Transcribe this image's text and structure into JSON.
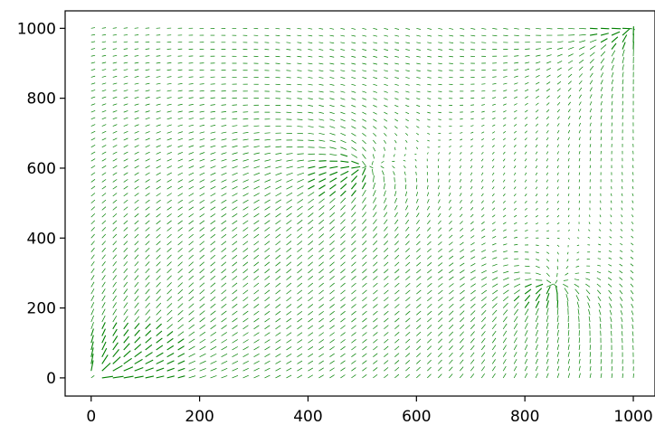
{
  "chart_data": {
    "type": "quiver",
    "title": "",
    "xlabel": "",
    "ylabel": "",
    "xlim": [
      -48,
      1040
    ],
    "ylim": [
      -52,
      1050
    ],
    "x_ticks": [
      0,
      200,
      400,
      600,
      800,
      1000
    ],
    "y_ticks": [
      0,
      200,
      400,
      600,
      800,
      1000
    ],
    "grid": false,
    "arrow_color": "#008000",
    "grid_points": {
      "x_start": 0,
      "x_end": 1000,
      "y_start": 0,
      "y_end": 1000,
      "step": 20
    },
    "field_features": [
      {
        "name": "source",
        "x": 0,
        "y": 0
      },
      {
        "name": "sink",
        "x": 1000,
        "y": 1000
      },
      {
        "name": "converge",
        "x": 500,
        "y": 600
      },
      {
        "name": "converge",
        "x": 850,
        "y": 260
      }
    ]
  }
}
